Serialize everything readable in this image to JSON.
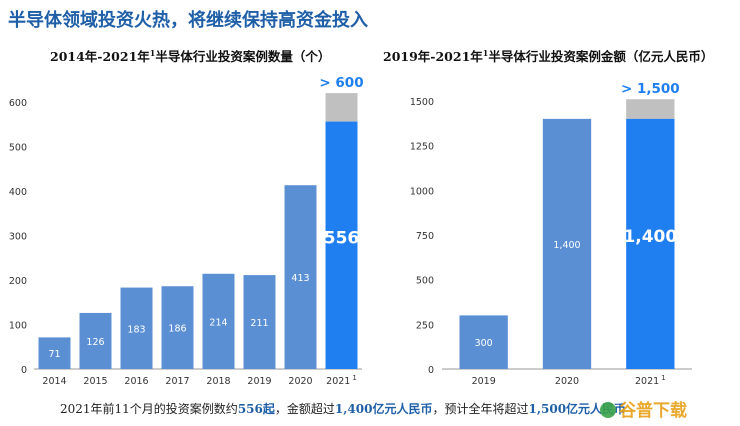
{
  "headline": "半导体领域投资火热，将继续保持高资金投入",
  "chart_data": [
    {
      "type": "bar",
      "title": "2014年-2021年",
      "title_sup": "1",
      "title_rest": "半导体行业投资案例数量（个）",
      "categories": [
        "2014",
        "2015",
        "2016",
        "2017",
        "2018",
        "2019",
        "2020",
        "2021"
      ],
      "category_sup": [
        "",
        "",
        "",
        "",
        "",
        "",
        "",
        "1"
      ],
      "values": [
        71,
        126,
        183,
        186,
        214,
        211,
        413,
        556
      ],
      "value_labels": [
        "71",
        "126",
        "183",
        "186",
        "214",
        "211",
        "413",
        "556"
      ],
      "projection_total": 620,
      "projection_label": "> 600",
      "ylim": [
        0,
        600
      ],
      "yticks": [
        "0",
        "100",
        "200",
        "300",
        "400",
        "500",
        "600"
      ],
      "bar_color": "#5b8fd4",
      "highlight_color": "#1f7ef0",
      "projection_color": "#c0c0c0"
    },
    {
      "type": "bar",
      "title": "2019年-2021年",
      "title_sup": "1",
      "title_rest": "半导体行业投资案例金额（亿元人民币）",
      "categories": [
        "2019",
        "2020",
        "2021"
      ],
      "category_sup": [
        "",
        "",
        "1"
      ],
      "values": [
        300,
        1400,
        1400
      ],
      "value_labels": [
        "300",
        "1,400",
        "1,400"
      ],
      "projection_total": 1510,
      "projection_label": "> 1,500",
      "ylim": [
        0,
        1500
      ],
      "yticks": [
        "0",
        "250",
        "500",
        "750",
        "1000",
        "1250",
        "1500"
      ],
      "bar_color": "#5b8fd4",
      "highlight_color": "#1f7ef0",
      "projection_color": "#c0c0c0"
    }
  ],
  "footer": {
    "part1": "2021年前11个月的投资案例数约",
    "hl1": "556起",
    "part2": "，金额超过",
    "hl2": "1,400亿元人民币",
    "part3": "，预计全年将超过",
    "hl3": "1,500亿元人民币"
  },
  "watermark": "谷普下载"
}
